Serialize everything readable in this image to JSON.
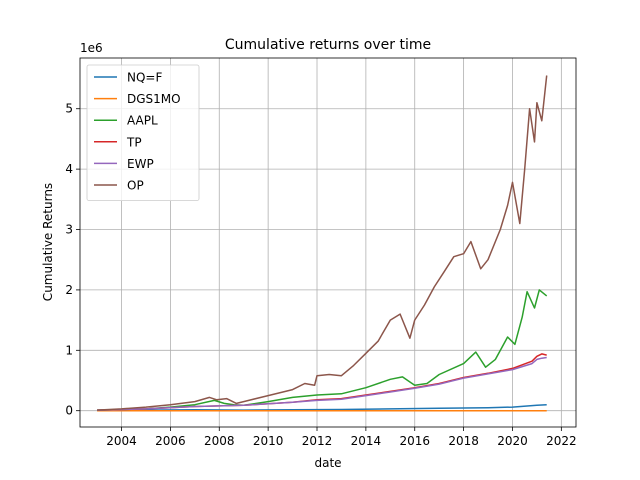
{
  "chart_data": {
    "type": "line",
    "title": "Cumulative returns over time",
    "xlabel": "date",
    "ylabel": "Cumulative Returns",
    "y_offset_text": "1e6",
    "xlim": [
      2002.3,
      2022.6
    ],
    "ylim": [
      -0.27,
      5.84
    ],
    "y_unit": 1000000,
    "x_ticks": [
      2004,
      2006,
      2008,
      2010,
      2012,
      2014,
      2016,
      2018,
      2020,
      2022
    ],
    "x_tick_labels": [
      "2004",
      "2006",
      "2008",
      "2010",
      "2012",
      "2014",
      "2016",
      "2018",
      "2020",
      "2022"
    ],
    "y_ticks": [
      0,
      1,
      2,
      3,
      4,
      5
    ],
    "y_tick_labels": [
      "0",
      "1",
      "2",
      "3",
      "4",
      "5"
    ],
    "grid": true,
    "legend_position": "upper-left",
    "series": [
      {
        "name": "NQ=F",
        "color": "#1f77b4",
        "x": [
          2003,
          2005,
          2007,
          2009,
          2011,
          2013,
          2015,
          2017,
          2019,
          2020,
          2021,
          2021.4
        ],
        "y": [
          0.005,
          0.01,
          0.015,
          0.01,
          0.015,
          0.02,
          0.03,
          0.04,
          0.05,
          0.06,
          0.09,
          0.1
        ]
      },
      {
        "name": "DGS1MO",
        "color": "#ff7f0e",
        "x": [
          2003,
          2021.4
        ],
        "y": [
          0.0,
          0.0
        ]
      },
      {
        "name": "AAPL",
        "color": "#2ca02c",
        "x": [
          2003,
          2004,
          2005,
          2006,
          2007,
          2007.8,
          2008.2,
          2008.6,
          2009,
          2010,
          2011,
          2012,
          2013,
          2014,
          2015,
          2015.5,
          2016,
          2016.5,
          2017,
          2018,
          2018.5,
          2018.9,
          2019.3,
          2019.8,
          2020.1,
          2020.4,
          2020.6,
          2020.9,
          2021.1,
          2021.4
        ],
        "y": [
          0.01,
          0.02,
          0.03,
          0.06,
          0.1,
          0.17,
          0.12,
          0.1,
          0.09,
          0.15,
          0.22,
          0.26,
          0.28,
          0.38,
          0.52,
          0.56,
          0.42,
          0.45,
          0.6,
          0.78,
          0.97,
          0.72,
          0.85,
          1.22,
          1.1,
          1.55,
          1.97,
          1.7,
          2.0,
          1.9
        ]
      },
      {
        "name": "TP",
        "color": "#d62728",
        "x": [
          2003,
          2005,
          2007,
          2009,
          2011,
          2012,
          2013,
          2014,
          2015,
          2016,
          2017,
          2018,
          2019,
          2020,
          2020.8,
          2021,
          2021.2,
          2021.4
        ],
        "y": [
          0.01,
          0.03,
          0.07,
          0.09,
          0.14,
          0.18,
          0.2,
          0.26,
          0.32,
          0.38,
          0.45,
          0.55,
          0.62,
          0.7,
          0.82,
          0.9,
          0.94,
          0.92
        ]
      },
      {
        "name": "EWP",
        "color": "#9467bd",
        "x": [
          2003,
          2005,
          2007,
          2009,
          2011,
          2012,
          2013,
          2014,
          2015,
          2016,
          2017,
          2018,
          2019,
          2020,
          2020.8,
          2021,
          2021.2,
          2021.4
        ],
        "y": [
          0.01,
          0.03,
          0.07,
          0.09,
          0.14,
          0.17,
          0.19,
          0.25,
          0.31,
          0.37,
          0.44,
          0.54,
          0.61,
          0.68,
          0.78,
          0.85,
          0.87,
          0.88
        ]
      },
      {
        "name": "OP",
        "color": "#8c564b",
        "x": [
          2003,
          2004,
          2005,
          2006,
          2007,
          2007.6,
          2007.9,
          2008.3,
          2008.7,
          2009,
          2010,
          2011,
          2011.5,
          2011.9,
          2012,
          2012.5,
          2013,
          2013.5,
          2014,
          2014.5,
          2015,
          2015.4,
          2015.8,
          2016,
          2016.4,
          2016.8,
          2017.2,
          2017.6,
          2018,
          2018.3,
          2018.7,
          2019,
          2019.5,
          2019.8,
          2020,
          2020.3,
          2020.5,
          2020.7,
          2020.9,
          2021,
          2021.2,
          2021.4
        ],
        "y": [
          0.01,
          0.03,
          0.06,
          0.1,
          0.15,
          0.22,
          0.18,
          0.2,
          0.12,
          0.15,
          0.25,
          0.35,
          0.45,
          0.42,
          0.58,
          0.6,
          0.58,
          0.75,
          0.95,
          1.15,
          1.5,
          1.6,
          1.2,
          1.5,
          1.75,
          2.05,
          2.3,
          2.55,
          2.6,
          2.8,
          2.35,
          2.5,
          3.0,
          3.4,
          3.78,
          3.1,
          4.0,
          5.0,
          4.45,
          5.1,
          4.8,
          5.55
        ]
      }
    ]
  }
}
